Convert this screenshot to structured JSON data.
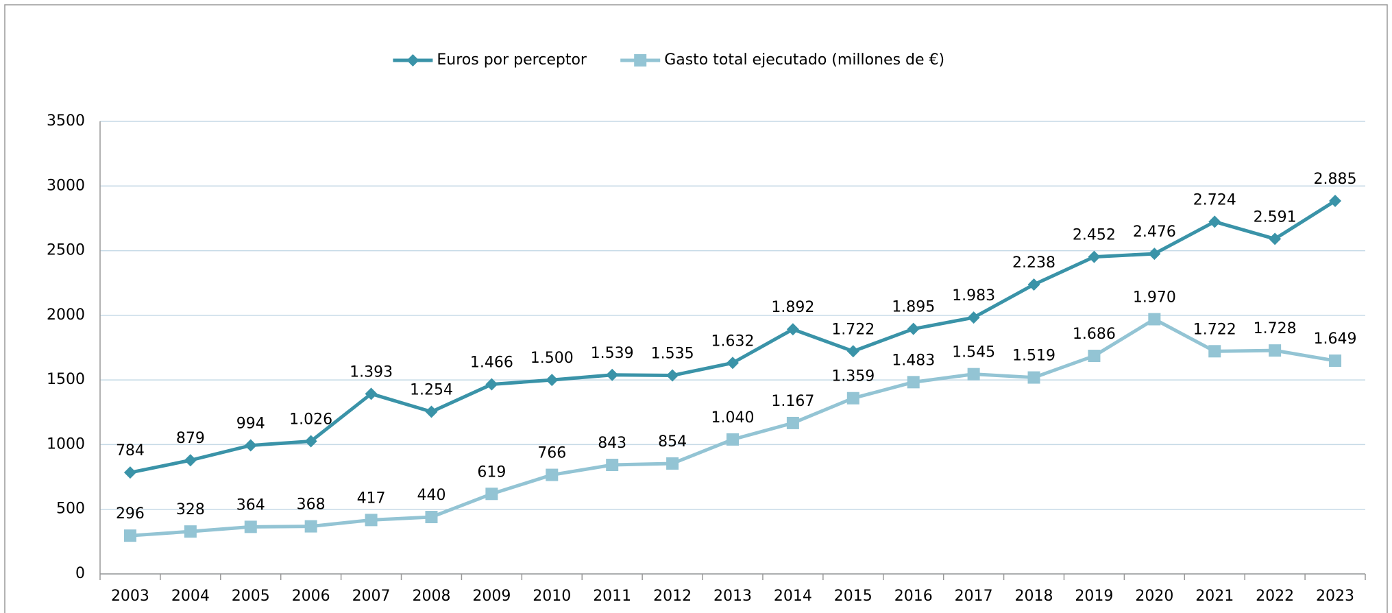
{
  "chart_data": {
    "type": "line",
    "categories": [
      "2003",
      "2004",
      "2005",
      "2006",
      "2007",
      "2008",
      "2009",
      "2010",
      "2011",
      "2012",
      "2013",
      "2014",
      "2015",
      "2016",
      "2017",
      "2018",
      "2019",
      "2020",
      "2021",
      "2022",
      "2023"
    ],
    "series": [
      {
        "name": "Euros por perceptor",
        "color": "#3a93a8",
        "marker": "diamond",
        "values": [
          784,
          879,
          994,
          1026,
          1393,
          1254,
          1466,
          1500,
          1539,
          1535,
          1632,
          1892,
          1722,
          1895,
          1983,
          2238,
          2452,
          2476,
          2724,
          2591,
          2885
        ],
        "value_labels": [
          "784",
          "879",
          "994",
          "1.026",
          "1.393",
          "1.254",
          "1.466",
          "1.500",
          "1.539",
          "1.535",
          "1.632",
          "1.892",
          "1.722",
          "1.895",
          "1.983",
          "2.238",
          "2.452",
          "2.476",
          "2.724",
          "2.591",
          "2.885"
        ]
      },
      {
        "name": "Gasto total ejecutado (millones de €)",
        "color": "#93c4d4",
        "marker": "square",
        "values": [
          296,
          328,
          364,
          368,
          417,
          440,
          619,
          766,
          843,
          854,
          1040,
          1167,
          1359,
          1483,
          1545,
          1519,
          1686,
          1970,
          1722,
          1728,
          1649
        ],
        "value_labels": [
          "296",
          "328",
          "364",
          "368",
          "417",
          "440",
          "619",
          "766",
          "843",
          "854",
          "1.040",
          "1.167",
          "1.359",
          "1.483",
          "1.545",
          "1.519",
          "1.686",
          "1.970",
          "1.722",
          "1.728",
          "1.649"
        ]
      }
    ],
    "ylim": [
      0,
      3500
    ],
    "yticks": [
      0,
      500,
      1000,
      1500,
      2000,
      2500,
      3000,
      3500
    ],
    "grid": true,
    "legend": "top"
  }
}
